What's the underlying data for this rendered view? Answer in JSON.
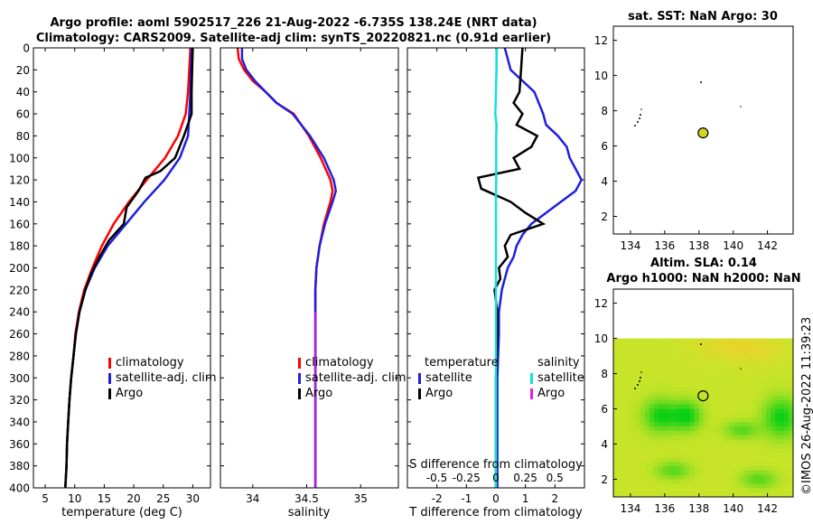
{
  "header": {
    "title_line1": "Argo profile: aoml 5902517_226 21-Aug-2022 -6.735S 138.24E (NRT data)",
    "title_line2": "Climatology: CARS2009. Satellite-adj clim: synTS_20220821.nc (0.91d earlier)"
  },
  "credit": "©IMOS 26-Aug-2022 11:39:23",
  "colors": {
    "red": "#ff0000",
    "blue": "#1f1fdf",
    "black": "#000000",
    "cyan": "#11e0e0",
    "magenta": "#e020e0",
    "olive": "#d4d420"
  },
  "chart_data": [
    {
      "id": "temperature",
      "type": "line",
      "xlabel": "temperature (deg C)",
      "ylabel": "",
      "xlim": [
        3,
        33
      ],
      "ylim": [
        0,
        400
      ],
      "y_inverted": true,
      "xticks": [
        5,
        10,
        15,
        20,
        25,
        30
      ],
      "yticks": [
        0,
        20,
        40,
        60,
        80,
        100,
        120,
        140,
        160,
        180,
        200,
        220,
        240,
        260,
        280,
        300,
        320,
        340,
        360,
        380,
        400
      ],
      "legend": [
        "climatology",
        "satellite-adj. clim",
        "Argo"
      ],
      "series": [
        {
          "name": "climatology",
          "color": "red",
          "points": [
            [
              29.6,
              0
            ],
            [
              29.4,
              20
            ],
            [
              29.2,
              40
            ],
            [
              28.8,
              60
            ],
            [
              27.5,
              80
            ],
            [
              25.3,
              100
            ],
            [
              22.2,
              120
            ],
            [
              19.2,
              140
            ],
            [
              16.6,
              160
            ],
            [
              14.6,
              180
            ],
            [
              13.0,
              200
            ],
            [
              11.6,
              220
            ],
            [
              10.7,
              240
            ],
            [
              10.1,
              260
            ],
            [
              9.8,
              280
            ],
            [
              9.4,
              300
            ],
            [
              9.1,
              320
            ],
            [
              8.9,
              340
            ],
            [
              8.7,
              360
            ],
            [
              8.6,
              380
            ],
            [
              8.4,
              400
            ]
          ]
        },
        {
          "name": "satellite-adj. clim",
          "color": "blue",
          "points": [
            [
              29.8,
              0
            ],
            [
              29.7,
              20
            ],
            [
              29.6,
              40
            ],
            [
              29.4,
              60
            ],
            [
              29.2,
              80
            ],
            [
              27.8,
              100
            ],
            [
              25.2,
              120
            ],
            [
              21.8,
              140
            ],
            [
              18.7,
              160
            ],
            [
              15.6,
              180
            ],
            [
              13.4,
              200
            ],
            [
              11.8,
              220
            ],
            [
              10.8,
              240
            ],
            [
              10.2,
              260
            ],
            [
              9.8,
              280
            ],
            [
              9.4,
              300
            ],
            [
              9.1,
              320
            ],
            [
              8.9,
              340
            ],
            [
              8.7,
              360
            ],
            [
              8.6,
              380
            ],
            [
              8.4,
              400
            ]
          ]
        },
        {
          "name": "Argo",
          "color": "black",
          "points": [
            [
              30.0,
              0
            ],
            [
              29.9,
              20
            ],
            [
              29.8,
              40
            ],
            [
              29.8,
              60
            ],
            [
              28.5,
              80
            ],
            [
              27.0,
              100
            ],
            [
              24.5,
              112
            ],
            [
              22.0,
              118
            ],
            [
              20.8,
              130
            ],
            [
              18.8,
              145
            ],
            [
              18.3,
              160
            ],
            [
              15.8,
              175
            ],
            [
              14.2,
              190
            ],
            [
              12.8,
              205
            ],
            [
              11.8,
              220
            ],
            [
              10.8,
              240
            ],
            [
              10.2,
              260
            ],
            [
              9.8,
              280
            ],
            [
              9.4,
              300
            ],
            [
              9.1,
              320
            ],
            [
              8.9,
              340
            ],
            [
              8.7,
              360
            ],
            [
              8.6,
              380
            ],
            [
              8.4,
              400
            ]
          ]
        }
      ]
    },
    {
      "id": "salinity",
      "type": "line",
      "xlabel": "salinity",
      "ylabel": "",
      "xlim": [
        33.7,
        35.35
      ],
      "ylim": [
        0,
        400
      ],
      "y_inverted": true,
      "xticks": [
        34,
        34.5,
        35
      ],
      "legend": [
        "climatology",
        "satellite-adj. clim",
        "Argo"
      ],
      "series": [
        {
          "name": "climatology",
          "color": "red",
          "points": [
            [
              33.86,
              0
            ],
            [
              33.87,
              10
            ],
            [
              33.92,
              20
            ],
            [
              34.0,
              30
            ],
            [
              34.12,
              40
            ],
            [
              34.22,
              50
            ],
            [
              34.38,
              60
            ],
            [
              34.52,
              80
            ],
            [
              34.63,
              100
            ],
            [
              34.72,
              120
            ],
            [
              34.74,
              130
            ],
            [
              34.72,
              140
            ],
            [
              34.66,
              160
            ],
            [
              34.62,
              180
            ],
            [
              34.59,
              200
            ],
            [
              34.58,
              220
            ],
            [
              34.58,
              240
            ],
            [
              34.58,
              260
            ],
            [
              34.58,
              280
            ],
            [
              34.58,
              300
            ],
            [
              34.58,
              320
            ],
            [
              34.58,
              340
            ],
            [
              34.58,
              360
            ],
            [
              34.58,
              380
            ],
            [
              34.58,
              400
            ]
          ]
        },
        {
          "name": "satellite-adj. clim",
          "color": "blue",
          "points": [
            [
              33.9,
              0
            ],
            [
              33.9,
              10
            ],
            [
              33.94,
              20
            ],
            [
              34.02,
              30
            ],
            [
              34.12,
              40
            ],
            [
              34.22,
              50
            ],
            [
              34.37,
              60
            ],
            [
              34.53,
              80
            ],
            [
              34.66,
              100
            ],
            [
              34.75,
              120
            ],
            [
              34.77,
              130
            ],
            [
              34.74,
              140
            ],
            [
              34.67,
              160
            ],
            [
              34.62,
              180
            ],
            [
              34.59,
              200
            ],
            [
              34.58,
              220
            ],
            [
              34.58,
              240
            ],
            [
              34.58,
              260
            ],
            [
              34.58,
              280
            ],
            [
              34.58,
              300
            ],
            [
              34.58,
              320
            ],
            [
              34.58,
              340
            ],
            [
              34.58,
              360
            ],
            [
              34.58,
              380
            ],
            [
              34.58,
              400
            ]
          ]
        }
      ]
    },
    {
      "id": "difference",
      "type": "line",
      "xlabel": "T difference from climatology",
      "xlabel2": "S difference from climatology",
      "xlim": [
        -3,
        3
      ],
      "ylim": [
        0,
        400
      ],
      "y_inverted": true,
      "xticks": [
        -2,
        -1,
        0,
        1,
        2
      ],
      "xticks2": [
        -0.5,
        -0.25,
        0,
        0.25,
        0.5
      ],
      "xtick_labels2": [
        "-0.5",
        "-0.25",
        "0",
        "0.25",
        "0.5"
      ],
      "legend_temperature_title": "temperature",
      "legend_salinity_title": "salinity",
      "legend_temperature": [
        "satellite",
        "Argo"
      ],
      "legend_salinity": [
        "satellite",
        "Argo"
      ],
      "series": [
        {
          "name": "T satellite",
          "color": "blue",
          "points": [
            [
              0.3,
              0
            ],
            [
              0.4,
              10
            ],
            [
              0.5,
              20
            ],
            [
              0.9,
              30
            ],
            [
              1.3,
              40
            ],
            [
              1.6,
              60
            ],
            [
              1.7,
              70
            ],
            [
              2.1,
              80
            ],
            [
              2.4,
              90
            ],
            [
              2.5,
              100
            ],
            [
              2.7,
              110
            ],
            [
              2.9,
              120
            ],
            [
              2.7,
              130
            ],
            [
              2.2,
              140
            ],
            [
              1.7,
              150
            ],
            [
              1.2,
              160
            ],
            [
              0.9,
              170
            ],
            [
              0.7,
              180
            ],
            [
              0.6,
              190
            ],
            [
              0.4,
              200
            ],
            [
              0.3,
              210
            ],
            [
              0.2,
              220
            ],
            [
              0.1,
              240
            ],
            [
              0.1,
              260
            ],
            [
              0.05,
              300
            ],
            [
              0.05,
              340
            ],
            [
              0.05,
              400
            ]
          ]
        },
        {
          "name": "T Argo",
          "color": "black",
          "points": [
            [
              0.9,
              0
            ],
            [
              0.85,
              20
            ],
            [
              0.8,
              40
            ],
            [
              0.6,
              50
            ],
            [
              0.9,
              60
            ],
            [
              0.7,
              70
            ],
            [
              1.4,
              80
            ],
            [
              1.2,
              90
            ],
            [
              0.6,
              100
            ],
            [
              0.8,
              110
            ],
            [
              -0.6,
              118
            ],
            [
              -0.5,
              128
            ],
            [
              0.5,
              140
            ],
            [
              1.0,
              150
            ],
            [
              1.6,
              160
            ],
            [
              0.5,
              170
            ],
            [
              0.3,
              180
            ],
            [
              0.4,
              190
            ],
            [
              0.1,
              200
            ],
            [
              0.15,
              210
            ],
            [
              -0.05,
              220
            ],
            [
              0.05,
              240
            ],
            [
              0.05,
              260
            ],
            [
              0.0,
              300
            ],
            [
              0.0,
              340
            ],
            [
              0.0,
              400
            ]
          ]
        },
        {
          "name": "S satellite",
          "color": "cyan",
          "points": [
            [
              0.03,
              0
            ],
            [
              0.02,
              10
            ],
            [
              0.02,
              20
            ],
            [
              0.01,
              30
            ],
            [
              0.0,
              40
            ],
            [
              -0.01,
              50
            ],
            [
              -0.02,
              60
            ],
            [
              0.02,
              70
            ],
            [
              0.01,
              80
            ],
            [
              0.01,
              100
            ],
            [
              0.01,
              120
            ],
            [
              0.0,
              140
            ],
            [
              0.0,
              160
            ],
            [
              0.0,
              180
            ],
            [
              0.0,
              200
            ],
            [
              0.0,
              220
            ],
            [
              0.0,
              240
            ],
            [
              0.0,
              260
            ],
            [
              0.0,
              280
            ],
            [
              0.0,
              300
            ],
            [
              0.0,
              320
            ],
            [
              0.0,
              340
            ],
            [
              0.0,
              360
            ],
            [
              0.0,
              380
            ],
            [
              0.0,
              400
            ]
          ]
        }
      ]
    },
    {
      "id": "sst_map",
      "type": "scatter",
      "title": "sat. SST: NaN Argo: 30",
      "xlim": [
        133,
        143.5
      ],
      "ylim": [
        1,
        12.8
      ],
      "xticks": [
        134,
        136,
        138,
        140,
        142
      ],
      "yticks": [
        2,
        4,
        6,
        8,
        10,
        12
      ],
      "argo_position": [
        138.24,
        6.74
      ],
      "argo_value": 30,
      "sst_value": "NaN"
    },
    {
      "id": "sla_map",
      "type": "heatmap",
      "title_line1": "Altim. SLA: 0.14",
      "title_line2": "Argo h1000: NaN h2000: NaN",
      "xlim": [
        133,
        143.5
      ],
      "ylim": [
        1,
        12.8
      ],
      "xticks": [
        134,
        136,
        138,
        140,
        142
      ],
      "yticks": [
        2,
        4,
        6,
        8,
        10,
        12
      ],
      "data_ymax": 10,
      "argo_position": [
        138.24,
        6.74
      ],
      "sla_value": 0.14,
      "h1000": "NaN",
      "h2000": "NaN"
    }
  ]
}
